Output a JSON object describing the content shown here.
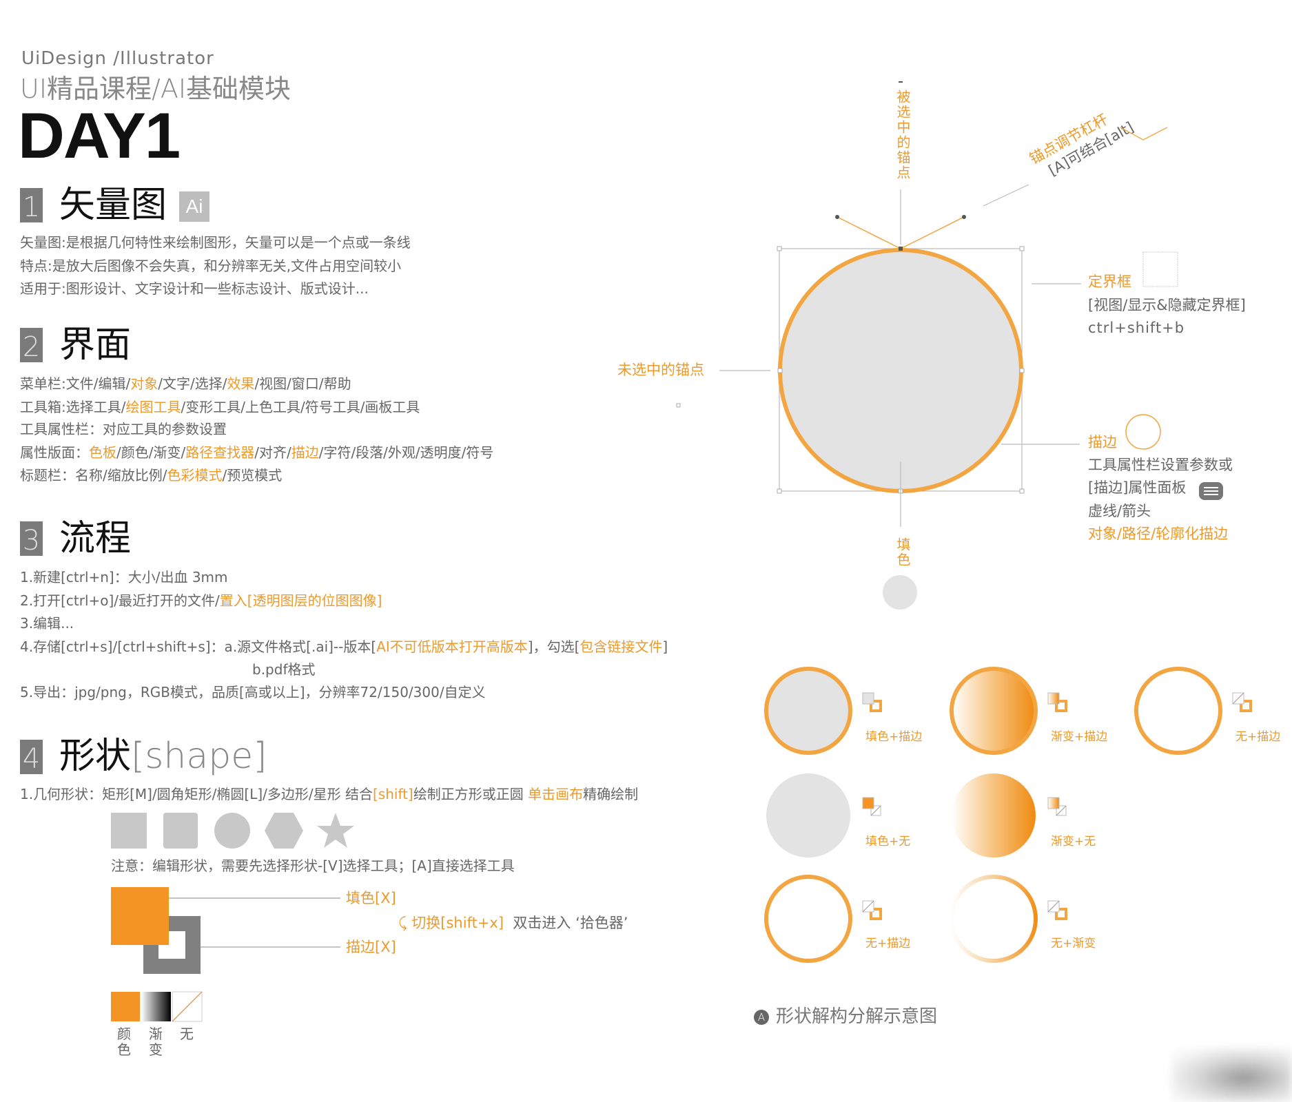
{
  "header": {
    "subtitle": "UiDesign /Illustrator",
    "course": "UI精品课程/AI基础模块",
    "day": "DAY1"
  },
  "sections": [
    {
      "num": "1",
      "title": "矢量图",
      "badge": "Ai",
      "lines": [
        [
          {
            "t": "矢量图:是根据几何特性来绘制图形，矢量可以是一个点或一条线"
          }
        ],
        [
          {
            "t": "特点:是放大后图像不会失真，和分辨率无关,文件占用空间较小"
          }
        ],
        [
          {
            "t": "适用于:图形设计、文字设计和一些标志设计、版式设计..."
          }
        ]
      ]
    },
    {
      "num": "2",
      "title": "界面",
      "lines": [
        [
          {
            "t": "菜单栏:文件/编辑/"
          },
          {
            "t": "对象",
            "hl": true
          },
          {
            "t": "/文字/选择/"
          },
          {
            "t": "效果",
            "hl": true
          },
          {
            "t": "/视图/窗口/帮助"
          }
        ],
        [
          {
            "t": "工具箱:选择工具/"
          },
          {
            "t": "绘图工具",
            "hl": true
          },
          {
            "t": "/变形工具/上色工具/符号工具/画板工具"
          }
        ],
        [
          {
            "t": "工具属性栏：对应工具的参数设置"
          }
        ],
        [
          {
            "t": "属性版面："
          },
          {
            "t": "色板",
            "hl": true
          },
          {
            "t": "/颜色/渐变/"
          },
          {
            "t": "路径查找器",
            "hl": true
          },
          {
            "t": "/对齐/"
          },
          {
            "t": "描边",
            "hl": true
          },
          {
            "t": "/字符/段落/外观/透明度/符号"
          }
        ],
        [
          {
            "t": "标题栏：名称/缩放比例/"
          },
          {
            "t": "色彩模式",
            "hl": true
          },
          {
            "t": "/预览模式"
          }
        ]
      ]
    },
    {
      "num": "3",
      "title": "流程",
      "lines": [
        [
          {
            "t": "1.新建[ctrl+n]：大小/出血 3mm"
          }
        ],
        [
          {
            "t": "2.打开[ctrl+o]/最近打开的文件/"
          },
          {
            "t": "置入[透明图层的位图图像]",
            "hl": true
          }
        ],
        [
          {
            "t": "3.编辑..."
          }
        ],
        [
          {
            "t": "4.存储[ctrl+s]/[ctrl+shift+s]：a.源文件格式[.ai]--版本["
          },
          {
            "t": "AI不可低版本打开高版本",
            "hl": true
          },
          {
            "t": "]，勾选["
          },
          {
            "t": "包含链接文件",
            "hl": true
          },
          {
            "t": "]"
          }
        ],
        [
          {
            "t": "b.pdf格式"
          }
        ],
        [
          {
            "t": "5.导出：jpg/png，RGB模式，品质[高或以上]，分辨率72/150/300/自定义"
          }
        ]
      ]
    },
    {
      "num": "4",
      "title": "形状",
      "title_en": "[shape]",
      "lines": [
        [
          {
            "t": "1.几何形状：矩形[M]/圆角矩形/椭圆[L]/多边形/星形  结合"
          },
          {
            "t": "[shift]",
            "hl": true
          },
          {
            "t": "绘制正方形或正圆  "
          },
          {
            "t": "单击画布",
            "hl": true
          },
          {
            "t": "精确绘制"
          }
        ]
      ],
      "note": "注意：编辑形状，需要先选择形状-[V]选择工具；[A]直接选择工具",
      "fill_label": "填色[X]",
      "stroke_label": "描边[X]",
      "swap_label": "切换[shift+x]",
      "swap_note": "双击进入 ‘拾色器’",
      "swatches": [
        {
          "label": "颜色",
          "kind": "color"
        },
        {
          "label": "渐变",
          "kind": "gradient"
        },
        {
          "label": "无",
          "kind": "none"
        }
      ]
    }
  ],
  "diagram": {
    "selected_anchor": "被选中的锚点",
    "handle_title": "锚点调节杠杆",
    "handle_note": "[A]可结合[alt]",
    "bbox_title": "定界框",
    "bbox_line1": "[视图/显示&隐藏定界框]",
    "bbox_line2": "ctrl+shift+b",
    "unselected_anchor": "未选中的锚点",
    "stroke_title": "描边",
    "stroke_lines": [
      "工具属性栏设置参数或",
      "[描边]属性面板",
      "虚线/箭头"
    ],
    "stroke_outline": "对象/路径/轮廓化描边",
    "fill_title": "填色"
  },
  "variants": [
    {
      "label": "填色+描边",
      "fill": "color",
      "stroke": "color"
    },
    {
      "label": "渐变+描边",
      "fill": "gradient",
      "stroke": "color"
    },
    {
      "label": "无+描边",
      "fill": "none",
      "stroke": "color"
    },
    {
      "label": "填色+无",
      "fill": "color",
      "stroke": "none"
    },
    {
      "label": "渐变+无",
      "fill": "gradient",
      "stroke": "none"
    },
    {
      "label": "无+描边",
      "fill": "none",
      "stroke": "color"
    },
    {
      "label": "无+渐变",
      "fill": "none",
      "stroke": "gradient"
    }
  ],
  "caption": "形状解构分解示意图",
  "colors": {
    "accent": "#ec9a2c",
    "stroke": "#f2a540",
    "fill_gray": "#e3e3e3",
    "orange_swatch": "#f39424",
    "badge": "#7a7a7a"
  }
}
